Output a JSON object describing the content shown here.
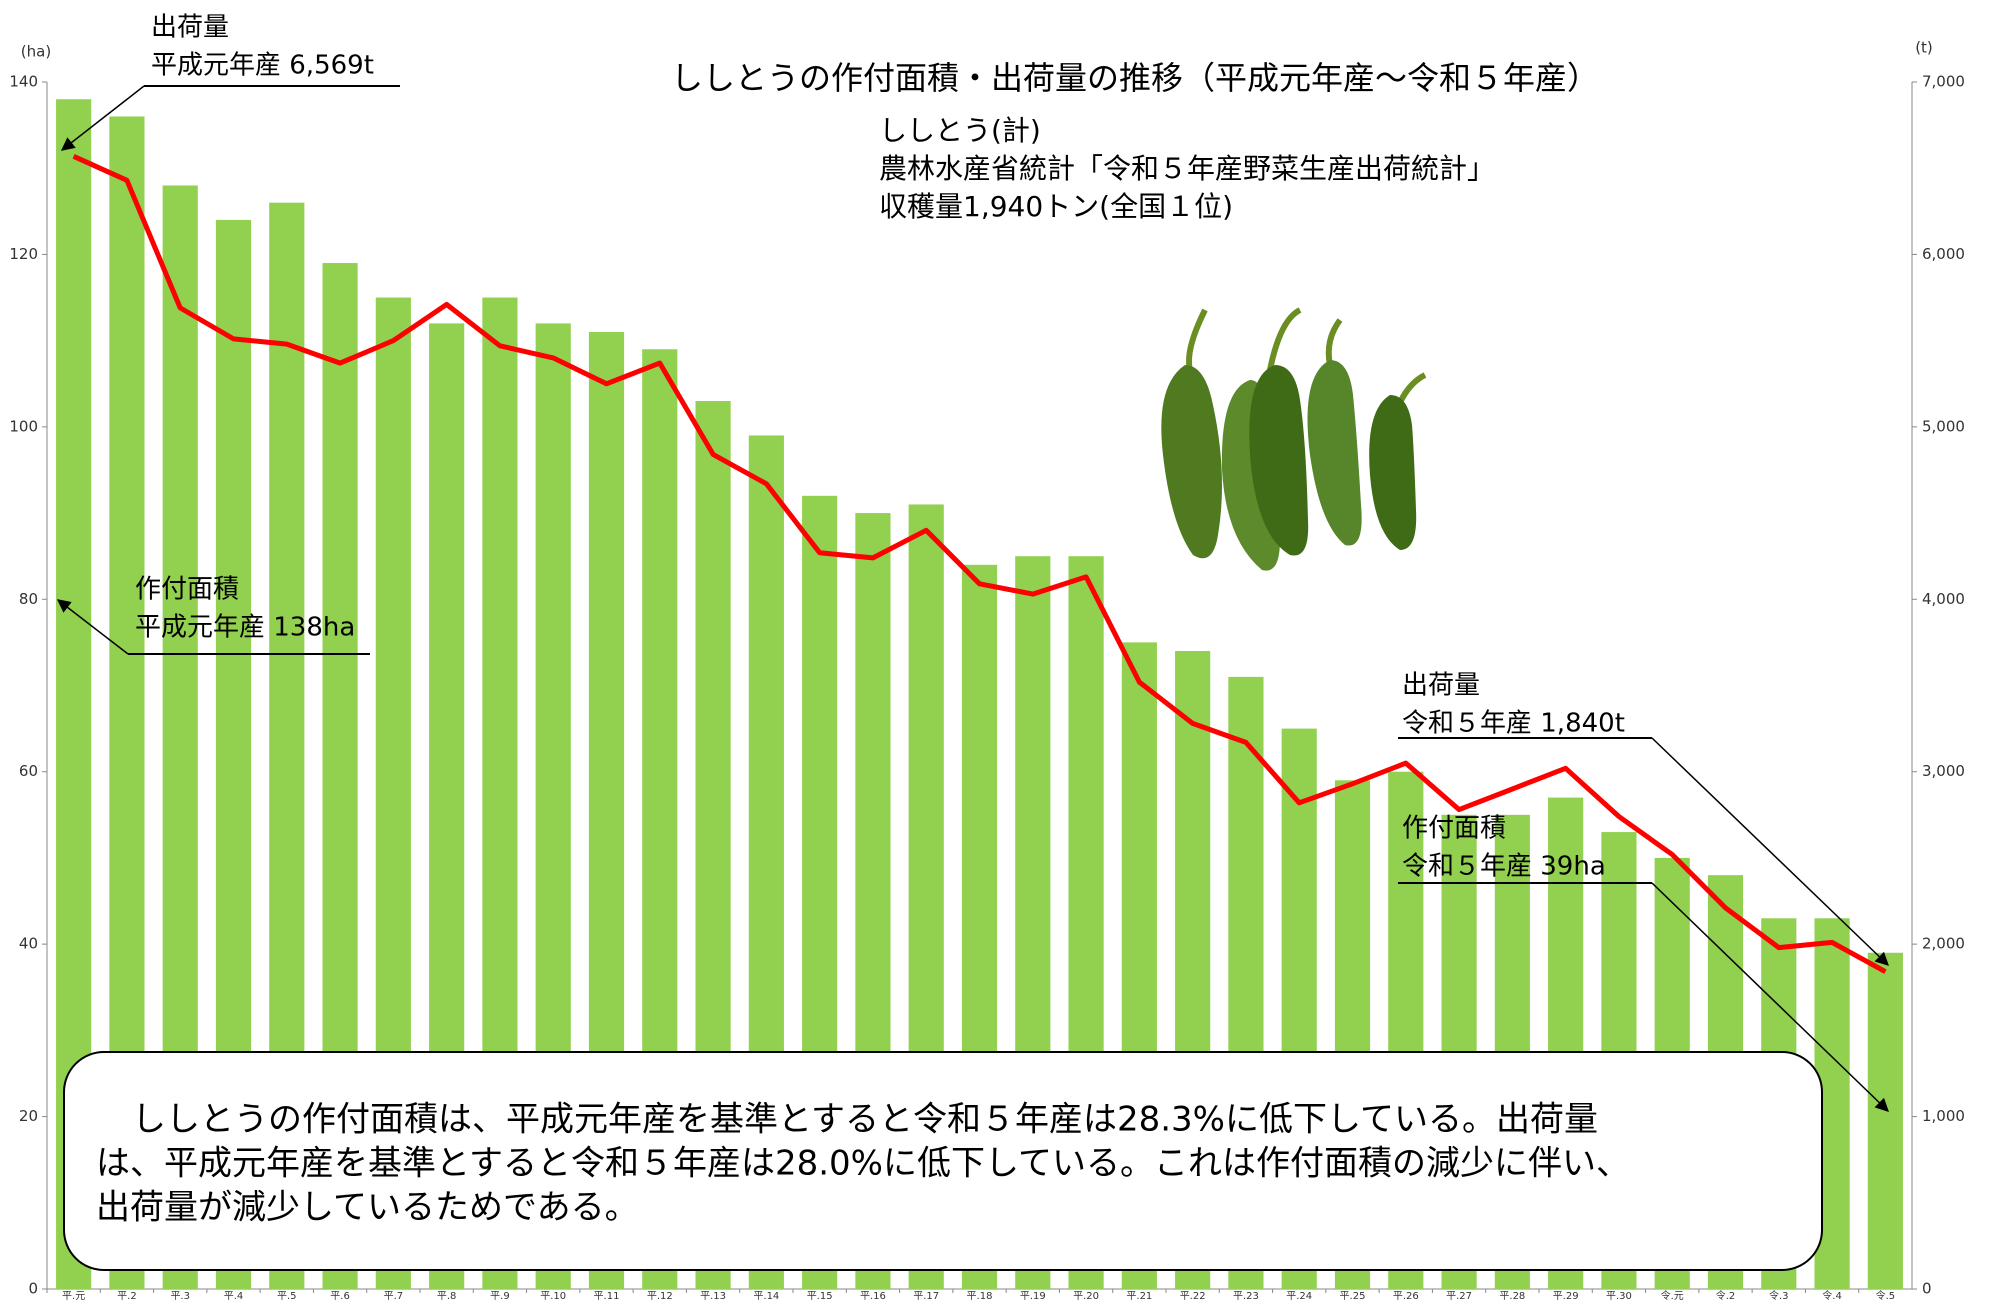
{
  "chart_data": {
    "type": "bar",
    "title": "ししとうの作付面積・出荷量の推移（平成元年産～令和５年産）",
    "subtitle": [
      "ししとう(計)",
      "農林水産省統計「令和５年産野菜生産出荷統計」",
      "収穫量1,940トン(全国１位)"
    ],
    "y_label": "(ha)",
    "y2_label": "(t)",
    "categories": [
      "平.元",
      "平.2",
      "平.3",
      "平.4",
      "平.5",
      "平.6",
      "平.7",
      "平.8",
      "平.9",
      "平.10",
      "平.11",
      "平.12",
      "平.13",
      "平.14",
      "平.15",
      "平.16",
      "平.17",
      "平.18",
      "平.19",
      "平.20",
      "平.21",
      "平.22",
      "平.23",
      "平.24",
      "平.25",
      "平.26",
      "平.27",
      "平.28",
      "平.29",
      "平.30",
      "令.元",
      "令.2",
      "令.3",
      "令.4",
      "令.5"
    ],
    "series": [
      {
        "name": "作付面積",
        "type": "bar",
        "color": "#92d050",
        "values": [
          138,
          136,
          128,
          124,
          126,
          119,
          115,
          112,
          115,
          112,
          111,
          109,
          103,
          99,
          92,
          90,
          91,
          84,
          85,
          85,
          75,
          74,
          71,
          65,
          59,
          60,
          55,
          55,
          57,
          53,
          50,
          48,
          43,
          43,
          39
        ]
      },
      {
        "name": "出荷量",
        "type": "line",
        "axis": "y2",
        "color": "#ff0000",
        "values": [
          6569,
          6430,
          5690,
          5510,
          5480,
          5370,
          5500,
          5710,
          5470,
          5400,
          5250,
          5370,
          4840,
          4670,
          4270,
          4240,
          4400,
          4090,
          4030,
          4130,
          3520,
          3280,
          3170,
          2820,
          2930,
          3050,
          2780,
          2900,
          3020,
          2740,
          2520,
          2210,
          1980,
          2010,
          1840
        ]
      }
    ],
    "ylim": [
      0,
      140
    ],
    "yticks": [
      0,
      20,
      40,
      60,
      80,
      100,
      120,
      140
    ],
    "y2lim": [
      0,
      7000
    ],
    "y2ticks": [
      0,
      {
        "value": 1000,
        "label": "1,000"
      },
      {
        "value": 2000,
        "label": "2,000"
      },
      {
        "value": 3000,
        "label": "3,000"
      },
      {
        "value": 4000,
        "label": "4,000"
      },
      {
        "value": 5000,
        "label": "5,000"
      },
      {
        "value": 6000,
        "label": "6,000"
      },
      {
        "value": 7000,
        "label": "7,000"
      }
    ],
    "annotations": [
      {
        "lines": [
          "出荷量",
          "平成元年産 6,569t"
        ]
      },
      {
        "lines": [
          "作付面積",
          "平成元年産 138ha"
        ]
      },
      {
        "lines": [
          "出荷量",
          "令和５年産 1,840t"
        ]
      },
      {
        "lines": [
          "作付面積",
          "令和５年産 39ha"
        ]
      }
    ],
    "note": [
      "ししとうの作付面積は、平成元年産を基準とすると令和５年産は28.3%に低下している。出荷量",
      "は、平成元年産を基準とすると令和５年産は28.0%に低下している。これは作付面積の減少に伴い、",
      "出荷量が減少しているためである。"
    ]
  }
}
